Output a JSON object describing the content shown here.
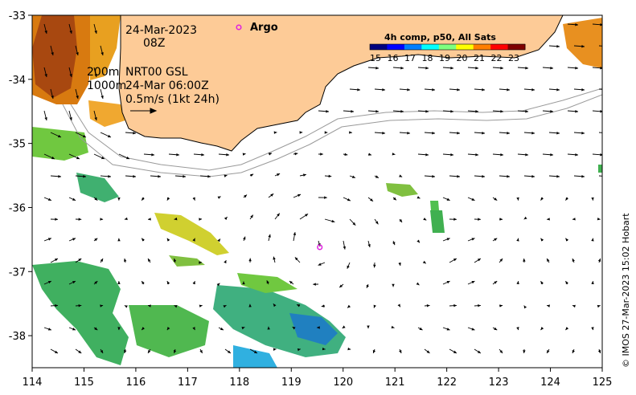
{
  "map": {
    "lon_range": [
      114,
      125
    ],
    "lat_range": [
      -38.5,
      -33
    ],
    "lon_ticks": [
      "114",
      "115",
      "116",
      "117",
      "118",
      "119",
      "120",
      "121",
      "122",
      "123",
      "124",
      "125"
    ],
    "lat_ticks": [
      "-33",
      "-34",
      "-35",
      "-36",
      "-37",
      "-38"
    ],
    "colors": {
      "land": "#fdcb97",
      "coast": "#000000",
      "isobath": "#9a9a9a",
      "arrow": "#000000",
      "argo": "#e020e0"
    }
  },
  "annotations": {
    "date": "24-Mar-2023",
    "time": "08Z",
    "isobath_200": "200m",
    "isobath_1000": "1000m",
    "product": "NRT00 GSL",
    "product_time": "24-Mar 06:00Z",
    "scale": "0.5m/s (1kt 24h)"
  },
  "argo": {
    "legend_label": "Argo",
    "float_lon": 119.55,
    "float_lat": -36.62
  },
  "colorbar": {
    "title": "4h comp, p50, All Sats",
    "ticks": [
      "15",
      "16",
      "17",
      "18",
      "19",
      "20",
      "21",
      "22",
      "23"
    ],
    "colors": [
      "#00007f",
      "#0000ff",
      "#007fff",
      "#00ffff",
      "#7fff7f",
      "#ffff00",
      "#ff7f00",
      "#ff0000",
      "#7f0000"
    ]
  },
  "credit": "© IMOS 27-Mar-2023 15:02 Hobart"
}
